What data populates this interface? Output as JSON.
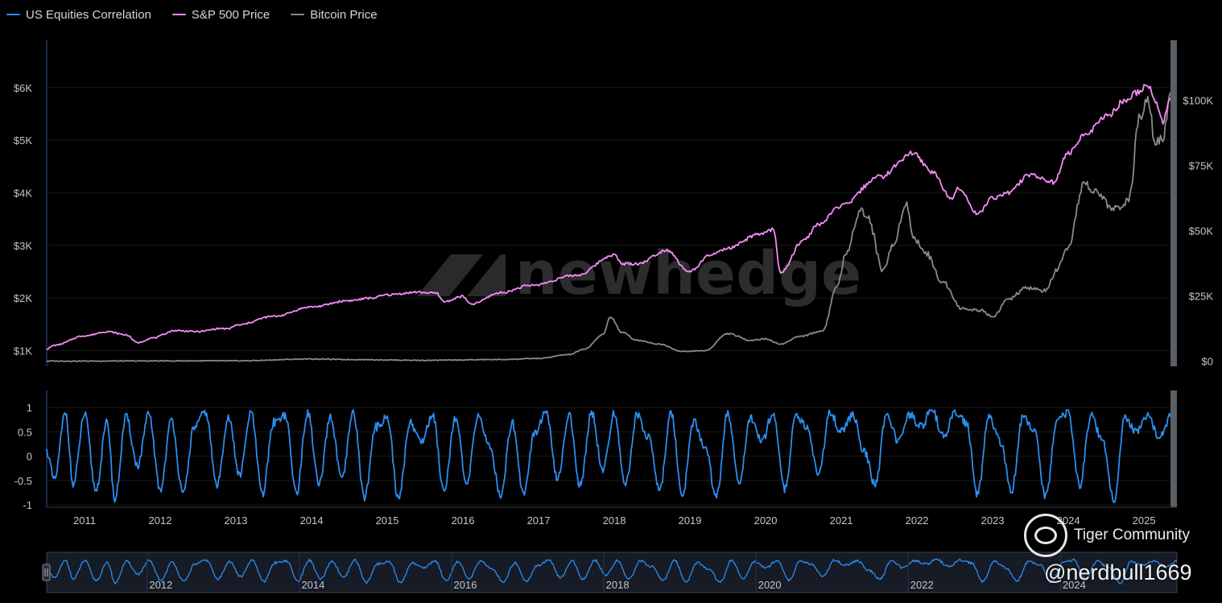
{
  "legend": [
    {
      "label": "US Equities Correlation",
      "color": "#2b8ef0"
    },
    {
      "label": "S&P 500 Price",
      "color": "#f58cf7"
    },
    {
      "label": "Bitcoin Price",
      "color": "#8a8a8a"
    }
  ],
  "watermark": "newhedge",
  "badge": {
    "text": "Tiger Community",
    "icon": "tiger-community-logo-icon"
  },
  "handle": "@nerdbull1669",
  "chart_data": [
    {
      "type": "line",
      "panel": "price",
      "x_range": [
        2010.5,
        2025.35
      ],
      "y_left": {
        "ticks": [
          "$1K",
          "$2K",
          "$3K",
          "$4K",
          "$5K",
          "$6K"
        ],
        "tick_values": [
          1000,
          2000,
          3000,
          4000,
          5000,
          6000
        ],
        "range": [
          700,
          6900
        ]
      },
      "y_right": {
        "ticks": [
          "$0",
          "$25K",
          "$50K",
          "$75K",
          "$100K"
        ],
        "tick_values": [
          0,
          25000,
          50000,
          75000,
          100000
        ],
        "range": [
          -2000,
          123000
        ]
      },
      "grid": true,
      "series": [
        {
          "name": "S&P 500 Price",
          "axis": "left",
          "color": "#f58cf7",
          "x": [
            2010.5,
            2010.6,
            2011.0,
            2011.3,
            2011.55,
            2011.7,
            2011.9,
            2012.2,
            2012.5,
            2012.8,
            2012.9,
            2013.0,
            2013.5,
            2014.0,
            2014.5,
            2014.8,
            2015.0,
            2015.4,
            2015.65,
            2015.75,
            2016.0,
            2016.1,
            2016.5,
            2016.9,
            2017.5,
            2018.0,
            2018.1,
            2018.3,
            2018.7,
            2018.98,
            2019.3,
            2019.5,
            2019.9,
            2020.1,
            2020.2,
            2020.5,
            2020.7,
            2021.0,
            2021.5,
            2021.95,
            2022.2,
            2022.45,
            2022.55,
            2022.8,
            2023.0,
            2023.2,
            2023.5,
            2023.8,
            2024.0,
            2024.25,
            2024.5,
            2024.75,
            2024.9,
            2025.05,
            2025.15,
            2025.25,
            2025.35
          ],
          "values": [
            1030,
            1100,
            1280,
            1360,
            1300,
            1150,
            1240,
            1380,
            1360,
            1420,
            1410,
            1480,
            1650,
            1830,
            1950,
            2000,
            2060,
            2110,
            2090,
            1930,
            2030,
            1880,
            2100,
            2240,
            2430,
            2820,
            2650,
            2650,
            2910,
            2500,
            2830,
            2940,
            3200,
            3300,
            2480,
            3100,
            3400,
            3750,
            4300,
            4750,
            4400,
            3900,
            4100,
            3600,
            3900,
            4000,
            4350,
            4200,
            4750,
            5150,
            5450,
            5750,
            5900,
            6050,
            5750,
            5350,
            5800
          ]
        },
        {
          "name": "Bitcoin Price",
          "axis": "right",
          "color": "#8a8a8a",
          "x": [
            2010.5,
            2013.0,
            2014.0,
            2014.5,
            2015.5,
            2016.5,
            2017.0,
            2017.4,
            2017.6,
            2017.85,
            2017.95,
            2018.1,
            2018.3,
            2018.6,
            2018.9,
            2019.2,
            2019.5,
            2019.8,
            2020.0,
            2020.2,
            2020.45,
            2020.75,
            2020.95,
            2021.05,
            2021.25,
            2021.35,
            2021.55,
            2021.7,
            2021.85,
            2021.95,
            2022.1,
            2022.35,
            2022.6,
            2022.85,
            2023.0,
            2023.2,
            2023.45,
            2023.7,
            2023.85,
            2024.0,
            2024.2,
            2024.4,
            2024.6,
            2024.8,
            2024.95,
            2025.05,
            2025.15,
            2025.25,
            2025.35
          ],
          "values": [
            0,
            100,
            800,
            600,
            300,
            600,
            1000,
            2500,
            4500,
            10000,
            17000,
            11000,
            8000,
            6500,
            3700,
            4000,
            10500,
            8000,
            8500,
            6500,
            9500,
            11500,
            29000,
            40000,
            58000,
            55000,
            35000,
            45000,
            61000,
            48000,
            42000,
            30000,
            20000,
            19500,
            17000,
            23500,
            28000,
            27000,
            35000,
            43000,
            68000,
            64000,
            58000,
            62000,
            95000,
            102000,
            84000,
            86000,
            103000
          ]
        }
      ]
    },
    {
      "type": "line",
      "panel": "correlation",
      "x_range": [
        2010.5,
        2025.35
      ],
      "x_ticks": [
        "2011",
        "2012",
        "2013",
        "2014",
        "2015",
        "2016",
        "2017",
        "2018",
        "2019",
        "2020",
        "2021",
        "2022",
        "2023",
        "2024",
        "2025"
      ],
      "x_tick_values": [
        2011,
        2012,
        2013,
        2014,
        2015,
        2016,
        2017,
        2018,
        2019,
        2020,
        2021,
        2022,
        2023,
        2024,
        2025
      ],
      "y_ticks": [
        "1",
        "0.5",
        "0",
        "-0.5",
        "-1"
      ],
      "y_tick_values": [
        1,
        0.5,
        0,
        -0.5,
        -1
      ],
      "y_range": [
        -1.05,
        1.35
      ],
      "series": [
        {
          "name": "US Equities Correlation",
          "color": "#2b8ef0",
          "x": [
            2010.5,
            2010.6,
            2010.75,
            2010.85,
            2011.0,
            2011.15,
            2011.3,
            2011.4,
            2011.55,
            2011.7,
            2011.85,
            2012.0,
            2012.15,
            2012.3,
            2012.45,
            2012.6,
            2012.75,
            2012.9,
            2013.05,
            2013.2,
            2013.35,
            2013.5,
            2013.65,
            2013.8,
            2013.95,
            2014.1,
            2014.25,
            2014.4,
            2014.55,
            2014.7,
            2014.85,
            2015.0,
            2015.15,
            2015.3,
            2015.45,
            2015.6,
            2015.75,
            2015.9,
            2016.05,
            2016.2,
            2016.35,
            2016.5,
            2016.65,
            2016.8,
            2016.95,
            2017.1,
            2017.25,
            2017.4,
            2017.55,
            2017.7,
            2017.85,
            2018.0,
            2018.15,
            2018.3,
            2018.45,
            2018.6,
            2018.75,
            2018.9,
            2019.05,
            2019.2,
            2019.35,
            2019.5,
            2019.65,
            2019.8,
            2019.95,
            2020.1,
            2020.25,
            2020.4,
            2020.55,
            2020.7,
            2020.85,
            2021.0,
            2021.15,
            2021.3,
            2021.45,
            2021.6,
            2021.75,
            2021.9,
            2022.05,
            2022.2,
            2022.35,
            2022.5,
            2022.65,
            2022.8,
            2022.95,
            2023.1,
            2023.25,
            2023.4,
            2023.55,
            2023.7,
            2023.85,
            2024.0,
            2024.15,
            2024.3,
            2024.45,
            2024.6,
            2024.75,
            2024.9,
            2025.05,
            2025.2,
            2025.35
          ],
          "values": [
            0.1,
            -0.5,
            0.9,
            -0.6,
            0.85,
            -0.7,
            0.7,
            -0.9,
            0.8,
            -0.2,
            0.85,
            -0.7,
            0.75,
            -0.8,
            0.6,
            0.9,
            -0.6,
            0.8,
            -0.4,
            0.9,
            -0.8,
            0.7,
            0.85,
            -0.75,
            0.9,
            -0.6,
            0.8,
            -0.5,
            0.9,
            -0.85,
            0.6,
            0.8,
            -0.9,
            0.7,
            0.3,
            0.85,
            -0.7,
            0.8,
            -0.6,
            0.85,
            0.2,
            -0.8,
            0.7,
            -0.75,
            0.5,
            0.9,
            -0.5,
            0.85,
            -0.6,
            0.9,
            -0.3,
            0.88,
            -0.6,
            0.85,
            0.4,
            -0.7,
            0.9,
            -0.8,
            0.7,
            0.2,
            -0.85,
            0.9,
            -0.6,
            0.8,
            0.3,
            0.9,
            -0.7,
            0.8,
            0.6,
            -0.4,
            0.9,
            0.5,
            0.85,
            0.1,
            -0.6,
            0.9,
            0.3,
            0.85,
            0.6,
            0.95,
            0.4,
            0.9,
            0.7,
            -0.8,
            0.85,
            0.3,
            -0.7,
            0.8,
            0.5,
            -0.85,
            0.7,
            0.9,
            -0.6,
            0.85,
            0.3,
            -0.9,
            0.8,
            0.5,
            0.85,
            0.4,
            0.8
          ]
        }
      ]
    },
    {
      "type": "area",
      "panel": "navigator",
      "x_range": [
        2010.5,
        2025.35
      ],
      "x_ticks": [
        "2012",
        "2014",
        "2016",
        "2018",
        "2020",
        "2022",
        "2024"
      ],
      "x_tick_values": [
        2012,
        2014,
        2016,
        2018,
        2020,
        2022,
        2024
      ]
    }
  ]
}
